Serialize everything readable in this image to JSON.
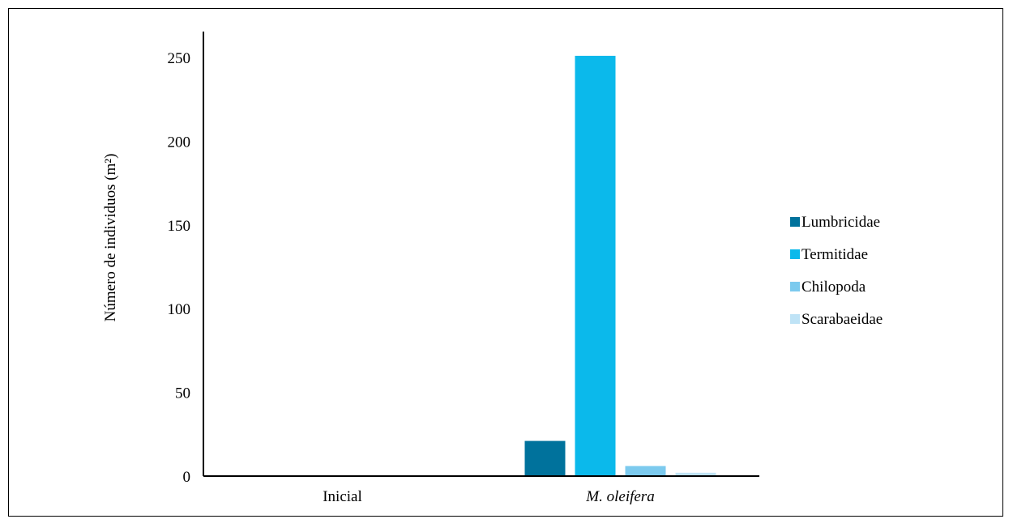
{
  "chart_data": {
    "type": "bar",
    "categories": [
      "Inicial",
      "M. oleifera"
    ],
    "category_italic": [
      false,
      true
    ],
    "series": [
      {
        "name": "Lumbricidae",
        "values": [
          0,
          21
        ],
        "color": "#00729C"
      },
      {
        "name": "Termitidae",
        "values": [
          0,
          251
        ],
        "color": "#0BB9EB"
      },
      {
        "name": "Chilopoda",
        "values": [
          0,
          6
        ],
        "color": "#7CCAEE"
      },
      {
        "name": "Scarabaeidae",
        "values": [
          0,
          2
        ],
        "color": "#BFE3F6"
      }
    ],
    "title": "",
    "xlabel": "",
    "ylabel": "Número de individuos (m²)",
    "ylim": [
      0,
      250
    ],
    "yticks": [
      0,
      50,
      100,
      150,
      200,
      250
    ],
    "grid": false,
    "legend": "right"
  }
}
